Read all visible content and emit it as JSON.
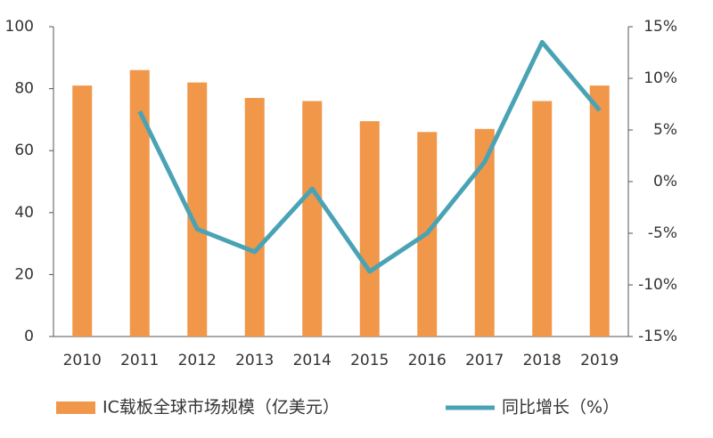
{
  "chart_data": {
    "type": "bar-line",
    "categories": [
      "2010",
      "2011",
      "2012",
      "2013",
      "2014",
      "2015",
      "2016",
      "2017",
      "2018",
      "2019"
    ],
    "series": [
      {
        "name": "IC载板全球市场规模（亿美元）",
        "type": "bar",
        "color": "#f0974a",
        "values": [
          81,
          86,
          82,
          77,
          76,
          69.5,
          66,
          67,
          76,
          81
        ]
      },
      {
        "name": "同比增长（%）",
        "type": "line",
        "axis": "y2",
        "color": "#4aa3b5",
        "values": [
          null,
          6.8,
          -4.6,
          -6.8,
          -0.7,
          -8.7,
          -5.0,
          1.9,
          13.5,
          6.9
        ]
      }
    ],
    "ylim": [
      0,
      100
    ],
    "yticks": [
      0,
      20,
      40,
      60,
      80,
      100
    ],
    "y2lim": [
      -15,
      15
    ],
    "y2ticks": [
      {
        "value": -15,
        "label": "-15%"
      },
      {
        "value": -10,
        "label": "-10%"
      },
      {
        "value": -5,
        "label": "-5%"
      },
      {
        "value": 0,
        "label": "0%"
      },
      {
        "value": 5,
        "label": "5%"
      },
      {
        "value": 10,
        "label": "10%"
      },
      {
        "value": 15,
        "label": "15%"
      }
    ],
    "grid": false,
    "legend": "bottom"
  }
}
